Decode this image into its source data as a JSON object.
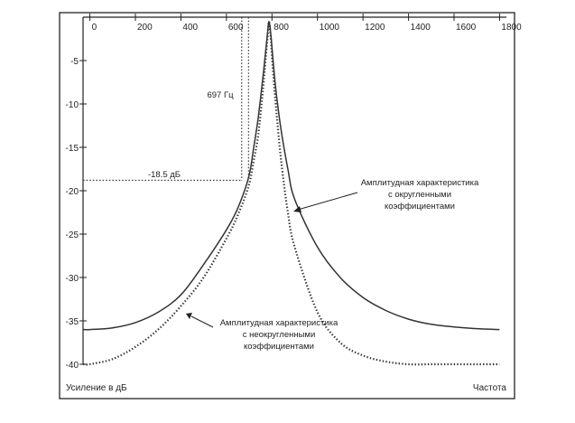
{
  "chart_data": {
    "type": "line",
    "title": "",
    "xlabel": "Частота",
    "ylabel": "Усиление в дБ",
    "xlim": [
      -30,
      1830
    ],
    "ylim": [
      -40,
      0
    ],
    "x_ticks": [
      0,
      200,
      400,
      600,
      800,
      1000,
      1200,
      1400,
      1600,
      1800
    ],
    "y_ticks": [
      -5,
      -10,
      -15,
      -20,
      -25,
      -30,
      -35,
      -40
    ],
    "grid": false,
    "legend": "none",
    "series": [
      {
        "name": "Амплитудная характеристика с округленными коэффициентами",
        "style": "solid",
        "color": "#333333",
        "x": [
          -30,
          0,
          100,
          200,
          300,
          400,
          500,
          600,
          650,
          697,
          720,
          740,
          760,
          770,
          780,
          787,
          795,
          800,
          810,
          820,
          840,
          870,
          900,
          1000,
          1100,
          1200,
          1300,
          1400,
          1500,
          1600,
          1700,
          1800
        ],
        "y": [
          -36,
          -36,
          -35.8,
          -35.2,
          -34,
          -32,
          -28.5,
          -24.5,
          -22,
          -18.5,
          -15,
          -11.5,
          -7,
          -4.5,
          -2,
          -0.5,
          -2,
          -3.5,
          -6.5,
          -9,
          -13,
          -17.5,
          -21,
          -26.5,
          -30,
          -32.3,
          -33.8,
          -34.8,
          -35.4,
          -35.7,
          -35.9,
          -36
        ]
      },
      {
        "name": "Амплитудная характеристика с неокругленными коэффициентами",
        "style": "dotted",
        "color": "#333333",
        "x": [
          -30,
          0,
          100,
          200,
          300,
          400,
          500,
          600,
          650,
          697,
          720,
          740,
          760,
          770,
          780,
          787,
          795,
          800,
          810,
          820,
          840,
          870,
          900,
          1000,
          1100,
          1200,
          1300,
          1400,
          1500,
          1600,
          1700,
          1800
        ],
        "y": [
          -40,
          -40,
          -39.4,
          -38,
          -36,
          -33.3,
          -30,
          -25.5,
          -22.8,
          -19.5,
          -16.5,
          -13.5,
          -8.5,
          -5.5,
          -2.5,
          -0.5,
          -2.5,
          -4.5,
          -8,
          -11,
          -16.5,
          -22.5,
          -26.5,
          -34,
          -37.5,
          -39,
          -39.7,
          -40,
          -40,
          -40,
          -40,
          -40
        ]
      }
    ],
    "annotations": [
      {
        "text": "697 Гц",
        "x": 697,
        "y": -3.5
      },
      {
        "text": "-18.5 дБ",
        "x": 380,
        "y": -17.6
      }
    ],
    "reference_lines": [
      {
        "orientation": "vertical",
        "x": 697,
        "y_from": 0,
        "y_to": -18.5,
        "style": "dotted"
      },
      {
        "orientation": "vertical",
        "x": 667,
        "y_from": 0,
        "y_to": -18.8,
        "style": "dotted"
      },
      {
        "orientation": "horizontal",
        "y": -18.8,
        "x_from": -30,
        "x_to": 667,
        "style": "dotted"
      }
    ]
  },
  "labels": {
    "annotation_freq": "697 Гц",
    "annotation_gain": "-18.5 дБ",
    "curve_rounded": [
      "Амплитудная характеристика",
      "с округленными",
      "коэффициентами"
    ],
    "curve_unrounded": [
      "Амплитудная характеристика",
      "с неокругленными",
      "коэффициентами"
    ],
    "ylabel": "Усиление в дБ",
    "xlabel": "Частота"
  }
}
